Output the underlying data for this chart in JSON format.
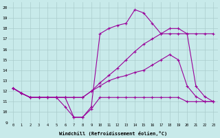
{
  "background_color": "#c8eaea",
  "grid_color": "#aacccc",
  "line_color": "#990099",
  "marker": "+",
  "markersize": 3,
  "linewidth": 0.8,
  "xlim": [
    -0.5,
    23.5
  ],
  "ylim": [
    9,
    20.5
  ],
  "xtick_labels": [
    "0",
    "1",
    "2",
    "3",
    "4",
    "5",
    "6",
    "7",
    "8",
    "9",
    "10",
    "11",
    "12",
    "13",
    "14",
    "15",
    "16",
    "17",
    "18",
    "19",
    "20",
    "21",
    "22",
    "23"
  ],
  "ytick_labels": [
    "9",
    "10",
    "11",
    "12",
    "13",
    "14",
    "15",
    "16",
    "17",
    "18",
    "19",
    "20"
  ],
  "xlabel": "Windchill (Refroidissement éolien,°C)",
  "series": [
    [
      12.3,
      11.8,
      11.4,
      11.4,
      11.4,
      11.4,
      10.5,
      9.5,
      9.5,
      10.3,
      11.4,
      11.4,
      11.4,
      11.4,
      11.4,
      11.4,
      11.4,
      11.4,
      11.4,
      11.4,
      11.0,
      11.0,
      11.0,
      11.0
    ],
    [
      12.3,
      11.8,
      11.4,
      11.4,
      11.4,
      11.4,
      11.4,
      11.4,
      11.4,
      12.0,
      12.5,
      13.0,
      13.3,
      13.5,
      13.8,
      14.0,
      14.5,
      15.0,
      15.5,
      15.0,
      12.5,
      11.5,
      11.0,
      11.0
    ],
    [
      12.3,
      11.8,
      11.4,
      11.4,
      11.4,
      11.4,
      11.4,
      11.4,
      11.4,
      12.0,
      12.8,
      13.5,
      14.2,
      15.0,
      15.8,
      16.5,
      17.0,
      17.5,
      17.5,
      17.5,
      17.5,
      17.5,
      17.5,
      17.5
    ],
    [
      12.3,
      11.8,
      11.4,
      11.4,
      11.4,
      11.4,
      11.4,
      9.5,
      9.5,
      10.5,
      17.5,
      18.0,
      18.3,
      18.5,
      19.8,
      19.5,
      18.5,
      17.5,
      18.0,
      18.0,
      17.5,
      12.5,
      11.5,
      11.0
    ]
  ]
}
